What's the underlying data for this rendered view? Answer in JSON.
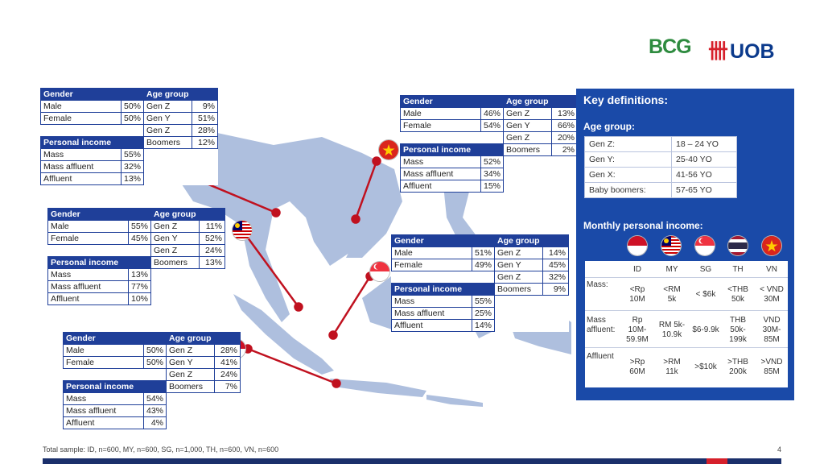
{
  "logos": {
    "bcg": "BCG",
    "uob": "UOB"
  },
  "thailand": {
    "gender_h": "Gender",
    "age_h": "Age group",
    "income_h": "Personal income",
    "rows": [
      [
        "Male",
        "50%",
        "Gen Z",
        "9%"
      ],
      [
        "Female",
        "50%",
        "Gen Y",
        "51%"
      ],
      [
        "",
        "",
        "Gen Z",
        "28%"
      ]
    ],
    "boomers": [
      "Boomers",
      "12%"
    ],
    "income": [
      [
        "Mass",
        "55%"
      ],
      [
        "Mass affluent",
        "32%"
      ],
      [
        "Affluent",
        "13%"
      ]
    ]
  },
  "vietnam": {
    "gender_h": "Gender",
    "age_h": "Age group",
    "income_h": "Personal income",
    "rows": [
      [
        "Male",
        "46%",
        "Gen Z",
        "13%"
      ],
      [
        "Female",
        "54%",
        "Gen Y",
        "66%"
      ],
      [
        "",
        "",
        "Gen Z",
        "20%"
      ]
    ],
    "boomers": [
      "Boomers",
      "2%"
    ],
    "income": [
      [
        "Mass",
        "52%"
      ],
      [
        "Mass affluent",
        "34%"
      ],
      [
        "Affluent",
        "15%"
      ]
    ]
  },
  "malaysia": {
    "gender_h": "Gender",
    "age_h": "Age group",
    "income_h": "Personal income",
    "rows": [
      [
        "Male",
        "55%",
        "Gen Z",
        "11%"
      ],
      [
        "Female",
        "45%",
        "Gen Y",
        "52%"
      ],
      [
        "",
        "",
        "Gen Z",
        "24%"
      ]
    ],
    "boomers": [
      "Boomers",
      "13%"
    ],
    "income": [
      [
        "Mass",
        "13%"
      ],
      [
        "Mass affluent",
        "77%"
      ],
      [
        "Affluent",
        "10%"
      ]
    ]
  },
  "singapore": {
    "gender_h": "Gender",
    "age_h": "Age group",
    "income_h": "Personal income",
    "rows": [
      [
        "Male",
        "51%",
        "Gen Z",
        "14%"
      ],
      [
        "Female",
        "49%",
        "Gen Y",
        "45%"
      ],
      [
        "",
        "",
        "Gen Z",
        "32%"
      ]
    ],
    "boomers": [
      "Boomers",
      "9%"
    ],
    "income": [
      [
        "Mass",
        "55%"
      ],
      [
        "Mass affluent",
        "25%"
      ],
      [
        "Affluent",
        "14%"
      ]
    ]
  },
  "indonesia": {
    "gender_h": "Gender",
    "age_h": "Age group",
    "income_h": "Personal income",
    "rows": [
      [
        "Male",
        "50%",
        "Gen Z",
        "28%"
      ],
      [
        "Female",
        "50%",
        "Gen Y",
        "41%"
      ],
      [
        "",
        "",
        "Gen Z",
        "24%"
      ]
    ],
    "boomers": [
      "Boomers",
      "7%"
    ],
    "income": [
      [
        "Mass",
        "54%"
      ],
      [
        "Mass affluent",
        "43%"
      ],
      [
        "Affluent",
        "4%"
      ]
    ]
  },
  "definitions": {
    "title": "Key definitions:",
    "age_title": "Age group:",
    "age_rows": [
      [
        "Gen Z:",
        "18 – 24 YO"
      ],
      [
        "Gen Y:",
        "25-40 YO"
      ],
      [
        "Gen X:",
        "41-56 YO"
      ],
      [
        "Baby boomers:",
        "57-65 YO"
      ]
    ],
    "income_title": "Monthly personal income:",
    "countries": [
      "ID",
      "MY",
      "SG",
      "TH",
      "VN"
    ],
    "mass_label": "Mass:",
    "mass": [
      "<Rp\n10M",
      "<RM\n5k",
      "< $6k",
      "<THB\n50k",
      "< VND\n30M"
    ],
    "mass_affluent_label": "Mass\naffluent:",
    "mass_affluent": [
      "Rp\n10M-\n59.9M",
      "RM 5k-\n10.9k",
      "$6-9.9k",
      "THB\n50k-\n199k",
      "VND\n30M-\n85M"
    ],
    "affluent_label": "Affluent",
    "affluent": [
      ">Rp\n60M",
      ">RM\n11k",
      ">$10k",
      ">THB\n200k",
      ">VND\n85M"
    ]
  },
  "colors": {
    "table_header": "#1f3f99",
    "panel": "#1a4aa8",
    "line": "#c0111f",
    "map": "#aebfde"
  },
  "footer": "Total sample: ID, n=600, MY, n=600, SG, n=1,000, TH, n=600, VN, n=600",
  "page_number": "4"
}
